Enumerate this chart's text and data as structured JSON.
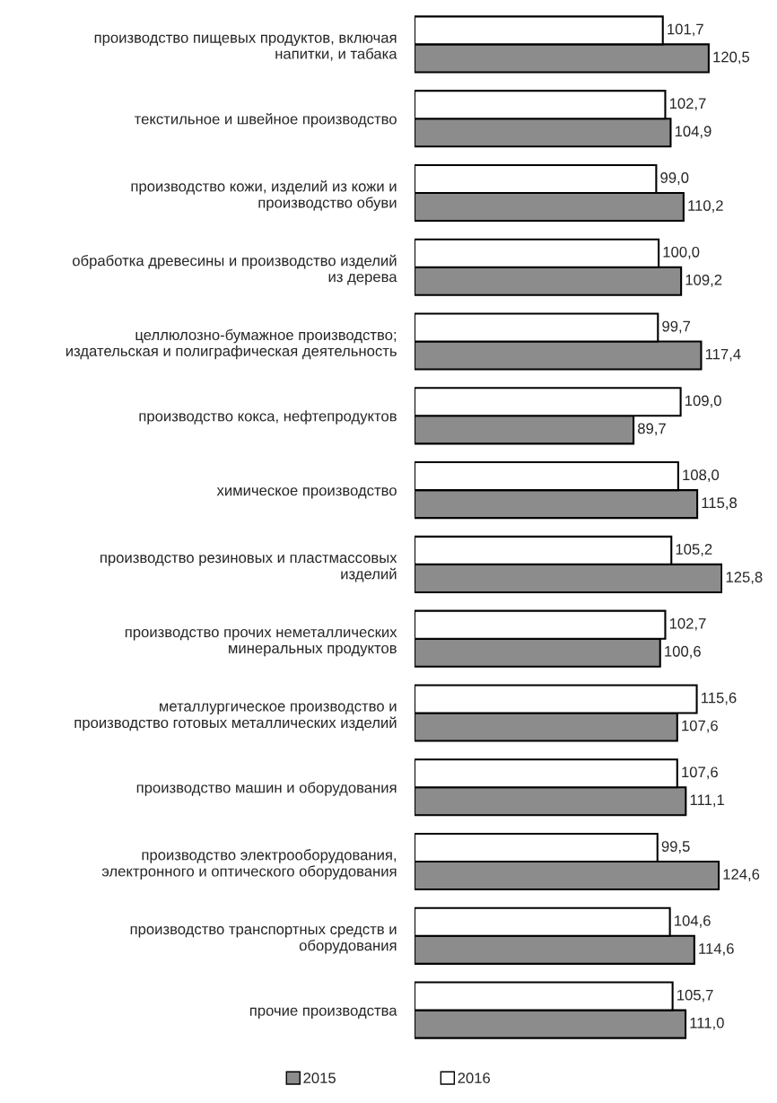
{
  "chart_data": {
    "type": "bar",
    "orientation": "horizontal",
    "categories": [
      "производство пищевых продуктов, включая\nнапитки, и табака",
      "текстильное и швейное производство",
      "производство кожи, изделий из кожи и\nпроизводство обуви",
      "обработка древесины и производство изделий\nиз дерева",
      "целлюлозно-бумажное производство;\nиздательская и полиграфическая деятельность",
      "производство кокса, нефтепродуктов",
      "химическое производство",
      "производство резиновых и пластмассовых\nизделий",
      "производство прочих неметаллических\nминеральных продуктов",
      "металлургическое производство и\nпроизводство готовых металлических изделий",
      "производство машин и оборудования",
      "производство электрооборудования,\nэлектронного и оптического оборудования",
      "производство транспортных средств и\nоборудования",
      "прочие производства"
    ],
    "series": [
      {
        "name": "2015",
        "color": "#8c8c8c",
        "values": [
          120.5,
          104.9,
          110.2,
          109.2,
          117.4,
          89.7,
          115.8,
          125.8,
          100.6,
          107.6,
          111.1,
          124.6,
          114.6,
          111.0
        ],
        "value_labels": [
          "120,5",
          "104,9",
          "110,2",
          "109,2",
          "117,4",
          "89,7",
          "115,8",
          "125,8",
          "100,6",
          "107,6",
          "111,1",
          "124,6",
          "114,6",
          "111,0"
        ]
      },
      {
        "name": "2016",
        "color": "#ffffff",
        "values": [
          101.7,
          102.7,
          99.0,
          100.0,
          99.7,
          109.0,
          108.0,
          105.2,
          102.7,
          115.6,
          107.6,
          99.5,
          104.6,
          105.7
        ],
        "value_labels": [
          "101,7",
          "102,7",
          "99,0",
          "100,0",
          "99,7",
          "109,0",
          "108,0",
          "105,2",
          "102,7",
          "115,6",
          "107,6",
          "99,5",
          "104,6",
          "105,7"
        ]
      }
    ],
    "legend": "bottom",
    "grid": false
  }
}
